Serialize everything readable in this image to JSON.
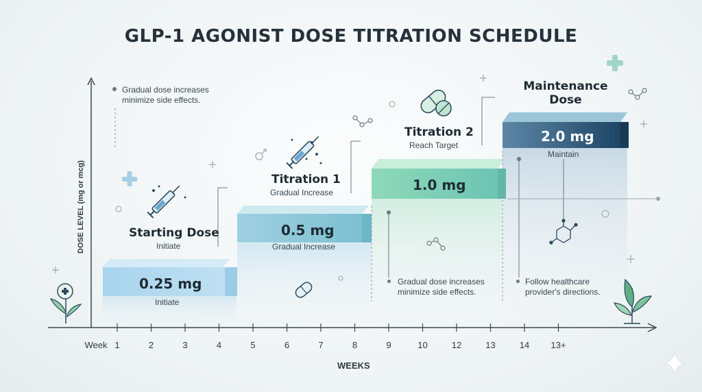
{
  "title": "GLP-1 AGONIST DOSE TITRATION SCHEDULE",
  "axes": {
    "y_label": "DOSE LEVEL (mg or mcg)",
    "x_label": "WEEKS",
    "x_prefix": "Week",
    "x_ticks": [
      "1",
      "2",
      "3",
      "4",
      "5",
      "6",
      "7",
      "8",
      "9",
      "10",
      "12",
      "13",
      "14",
      "13+"
    ]
  },
  "stages": [
    {
      "title": "Starting Dose",
      "subtitle": "Initiate",
      "dose": "0.25 mg",
      "dose_caption": "Initiate"
    },
    {
      "title": "Titration 1",
      "subtitle": "Gradual Increase",
      "dose": "0.5 mg",
      "dose_caption": "Gradual Increase"
    },
    {
      "title": "Titration 2",
      "subtitle": "Reach Target",
      "dose": "1.0 mg",
      "dose_caption": ""
    },
    {
      "title": "Maintenance Dose",
      "subtitle": "",
      "dose": "2.0 mg",
      "dose_caption": "Maintain"
    }
  ],
  "notes": {
    "top_left": "Gradual dose increases minimize side effects.",
    "middle": "Gradual dose increases minimize side effects.",
    "right": "Follow healthcare provider's directions."
  },
  "icons": [
    "syringe-icon",
    "pill-icon",
    "capsule-icon",
    "molecule-icon",
    "plus-icon",
    "male-symbol-icon",
    "plant-icon",
    "sparkle-icon"
  ],
  "colors": {
    "step_light": "#a9d3ec",
    "step_teal": "#7fc6c2",
    "step_green": "#8fd8b4",
    "step_navy": "#2f5f84",
    "text": "#26313a"
  }
}
